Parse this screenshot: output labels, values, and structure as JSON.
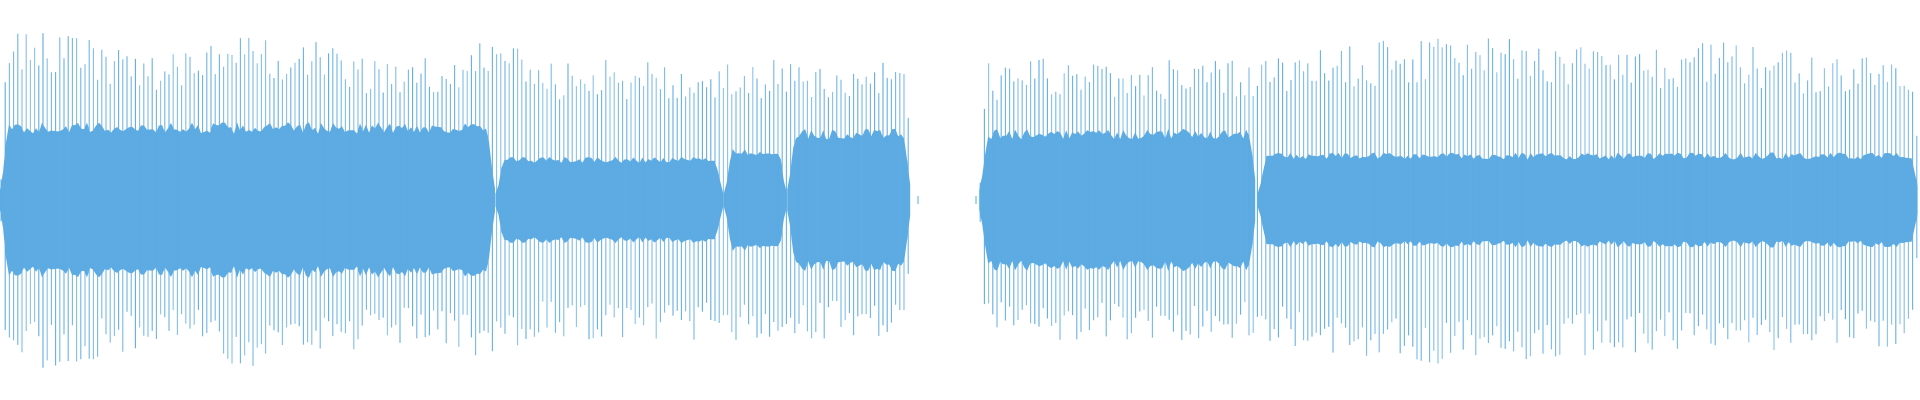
{
  "waveform": {
    "color": "#5dabe2",
    "background": "#ffffff",
    "segments": [
      {
        "name": "segment-1",
        "start": 0.0,
        "end": 0.475,
        "core_level": 0.34,
        "peak_envelope": [
          [
            0.0,
            0.82
          ],
          [
            0.03,
            0.86
          ],
          [
            0.06,
            0.78
          ],
          [
            0.1,
            0.74
          ],
          [
            0.13,
            0.86
          ],
          [
            0.16,
            0.8
          ],
          [
            0.2,
            0.72
          ],
          [
            0.24,
            0.76
          ],
          [
            0.26,
            0.82
          ],
          [
            0.28,
            0.7
          ]
        ],
        "sections": [
          {
            "start": 0.0,
            "end": 0.258,
            "core": 0.36
          },
          {
            "start": 0.258,
            "end": 0.377,
            "core": 0.2
          },
          {
            "start": 0.377,
            "end": 0.41,
            "core": 0.24
          },
          {
            "start": 0.41,
            "end": 0.475,
            "core": 0.33
          }
        ]
      },
      {
        "name": "segment-2",
        "start": 0.51,
        "end": 1.0,
        "core_level": 0.3,
        "peak_envelope": [
          [
            0.51,
            0.68
          ],
          [
            0.55,
            0.72
          ],
          [
            0.6,
            0.7
          ],
          [
            0.65,
            0.7
          ],
          [
            0.7,
            0.78
          ],
          [
            0.75,
            0.82
          ],
          [
            0.8,
            0.8
          ],
          [
            0.85,
            0.76
          ],
          [
            0.9,
            0.8
          ],
          [
            0.95,
            0.72
          ],
          [
            1.0,
            0.74
          ]
        ],
        "sections": [
          {
            "start": 0.51,
            "end": 0.655,
            "core": 0.33
          },
          {
            "start": 0.655,
            "end": 1.0,
            "core": 0.22
          }
        ]
      }
    ]
  }
}
